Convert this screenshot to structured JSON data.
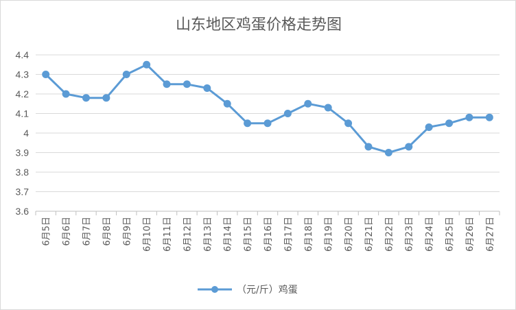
{
  "chart_data": {
    "type": "line",
    "title": "山东地区鸡蛋价格走势图",
    "categories": [
      "6月5日",
      "6月6日",
      "6月7日",
      "6月8日",
      "6月9日",
      "6月10日",
      "6月11日",
      "6月12日",
      "6月13日",
      "6月14日",
      "6月15日",
      "6月16日",
      "6月17日",
      "6月18日",
      "6月19日",
      "6月20日",
      "6月21日",
      "6月22日",
      "6月23日",
      "6月24日",
      "6月25日",
      "6月26日",
      "6月27日"
    ],
    "series": [
      {
        "name": "（元/斤）鸡蛋",
        "color": "#5b9bd5",
        "values": [
          4.3,
          4.2,
          4.18,
          4.18,
          4.3,
          4.35,
          4.25,
          4.25,
          4.23,
          4.15,
          4.05,
          4.05,
          4.1,
          4.15,
          4.13,
          4.05,
          3.93,
          3.9,
          3.93,
          4.03,
          4.05,
          4.08,
          4.08
        ]
      }
    ],
    "ylim": [
      3.6,
      4.4
    ],
    "yticks": [
      "3.6",
      "3.7",
      "3.8",
      "3.9",
      "4",
      "4.1",
      "4.2",
      "4.3",
      "4.4"
    ],
    "grid": true,
    "legend": "bottom"
  }
}
